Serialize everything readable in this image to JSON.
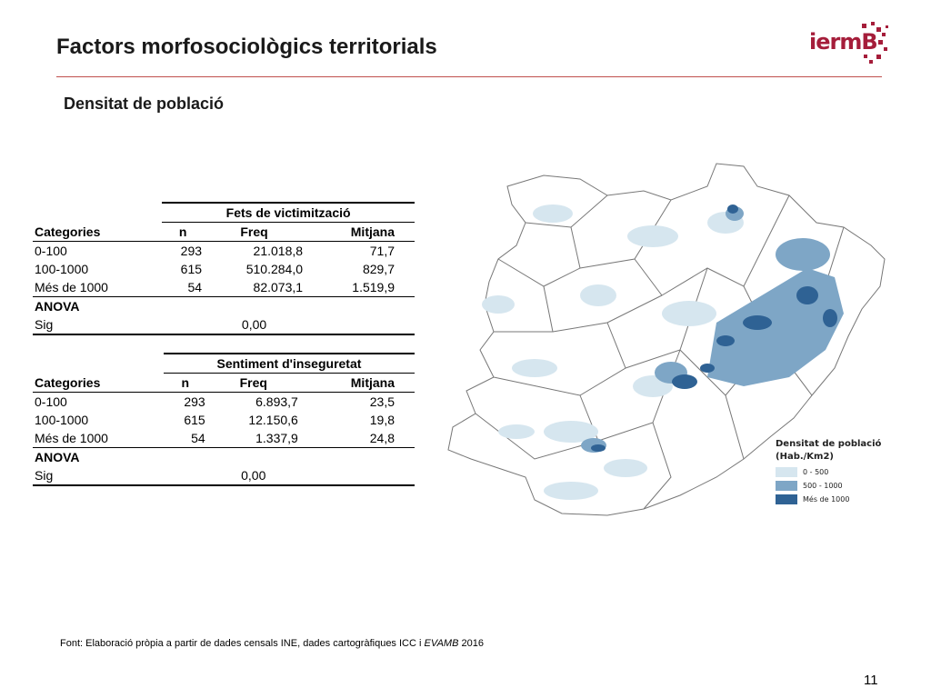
{
  "slide": {
    "title": "Factors morfosociològics territorials",
    "subtitle": "Densitat de població",
    "logo_text": "iermB",
    "source_prefix": "Font: Elaboració pròpia a partir de dades censals INE, dades cartogràfiques ICC i ",
    "source_italic": "EVAMB",
    "source_suffix": " 2016",
    "page_number": "11"
  },
  "table1": {
    "group_header": "Fets de victimització",
    "col_categories": "Categories",
    "col_n": "n",
    "col_freq": "Freq",
    "col_mitjana": "Mitjana",
    "rows": [
      {
        "cat": "0-100",
        "n": "293",
        "freq": "21.018,8",
        "mitjana": "71,7"
      },
      {
        "cat": "100-1000",
        "n": "615",
        "freq": "510.284,0",
        "mitjana": "829,7"
      },
      {
        "cat": "Més de 1000",
        "n": "54",
        "freq": "82.073,1",
        "mitjana": "1.519,9"
      }
    ],
    "anova_label": "ANOVA",
    "sig_label": "Sig",
    "sig_value": "0,00"
  },
  "table2": {
    "group_header": "Sentiment d'inseguretat",
    "col_categories": "Categories",
    "col_n": "n",
    "col_freq": "Freq",
    "col_mitjana": "Mitjana",
    "rows": [
      {
        "cat": "0-100",
        "n": "293",
        "freq": "6.893,7",
        "mitjana": "23,5"
      },
      {
        "cat": "100-1000",
        "n": "615",
        "freq": "12.150,6",
        "mitjana": "19,8"
      },
      {
        "cat": "Més de 1000",
        "n": "54",
        "freq": "1.337,9",
        "mitjana": "24,8"
      }
    ],
    "anova_label": "ANOVA",
    "sig_label": "Sig",
    "sig_value": "0,00"
  },
  "legend": {
    "title_line1": "Densitat de població",
    "title_line2": "(Hab./Km2)",
    "items": [
      {
        "label": "0 - 500",
        "color": "#d6e6ef"
      },
      {
        "label": "500 - 1000",
        "color": "#7ea6c6"
      },
      {
        "label": "Més de 1000",
        "color": "#2f6294"
      }
    ]
  },
  "colors": {
    "accent_rule": "#c0504d",
    "logo": "#a51d3a",
    "map_border": "#777777"
  }
}
